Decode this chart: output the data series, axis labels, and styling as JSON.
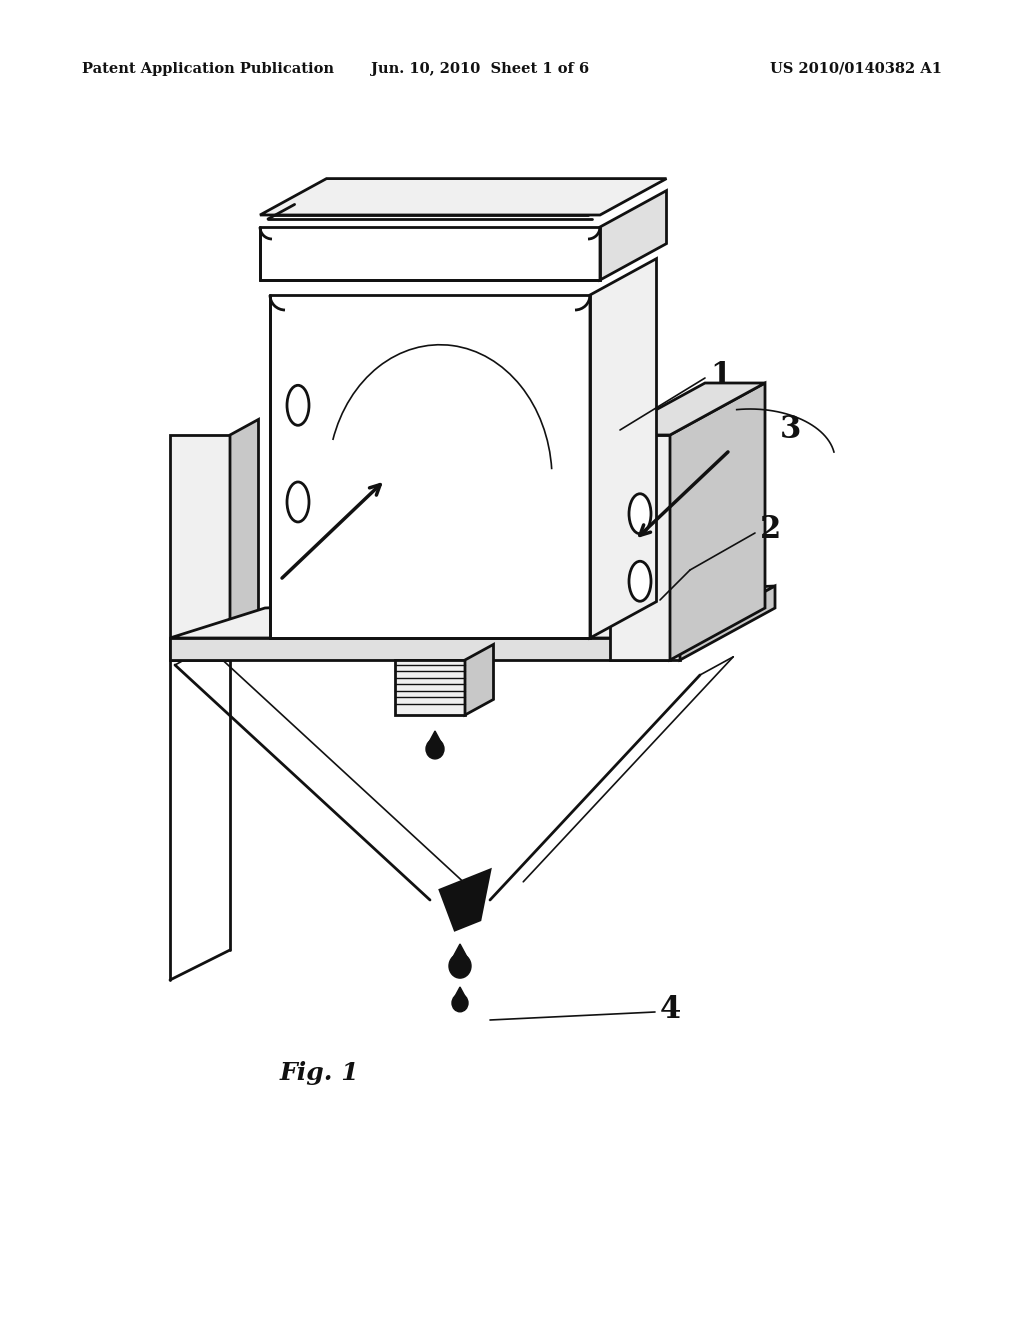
{
  "bg_color": "#ffffff",
  "header_left": "Patent Application Publication",
  "header_center": "Jun. 10, 2010  Sheet 1 of 6",
  "header_right": "US 2010/0140382 A1",
  "header_fontsize": 10.5,
  "figure_label": "Fig. 1",
  "line_color": "#111111",
  "fill_white": "#ffffff",
  "fill_light": "#f0f0f0",
  "fill_mid": "#e0e0e0",
  "fill_dark": "#c8c8c8",
  "fill_black": "#111111"
}
